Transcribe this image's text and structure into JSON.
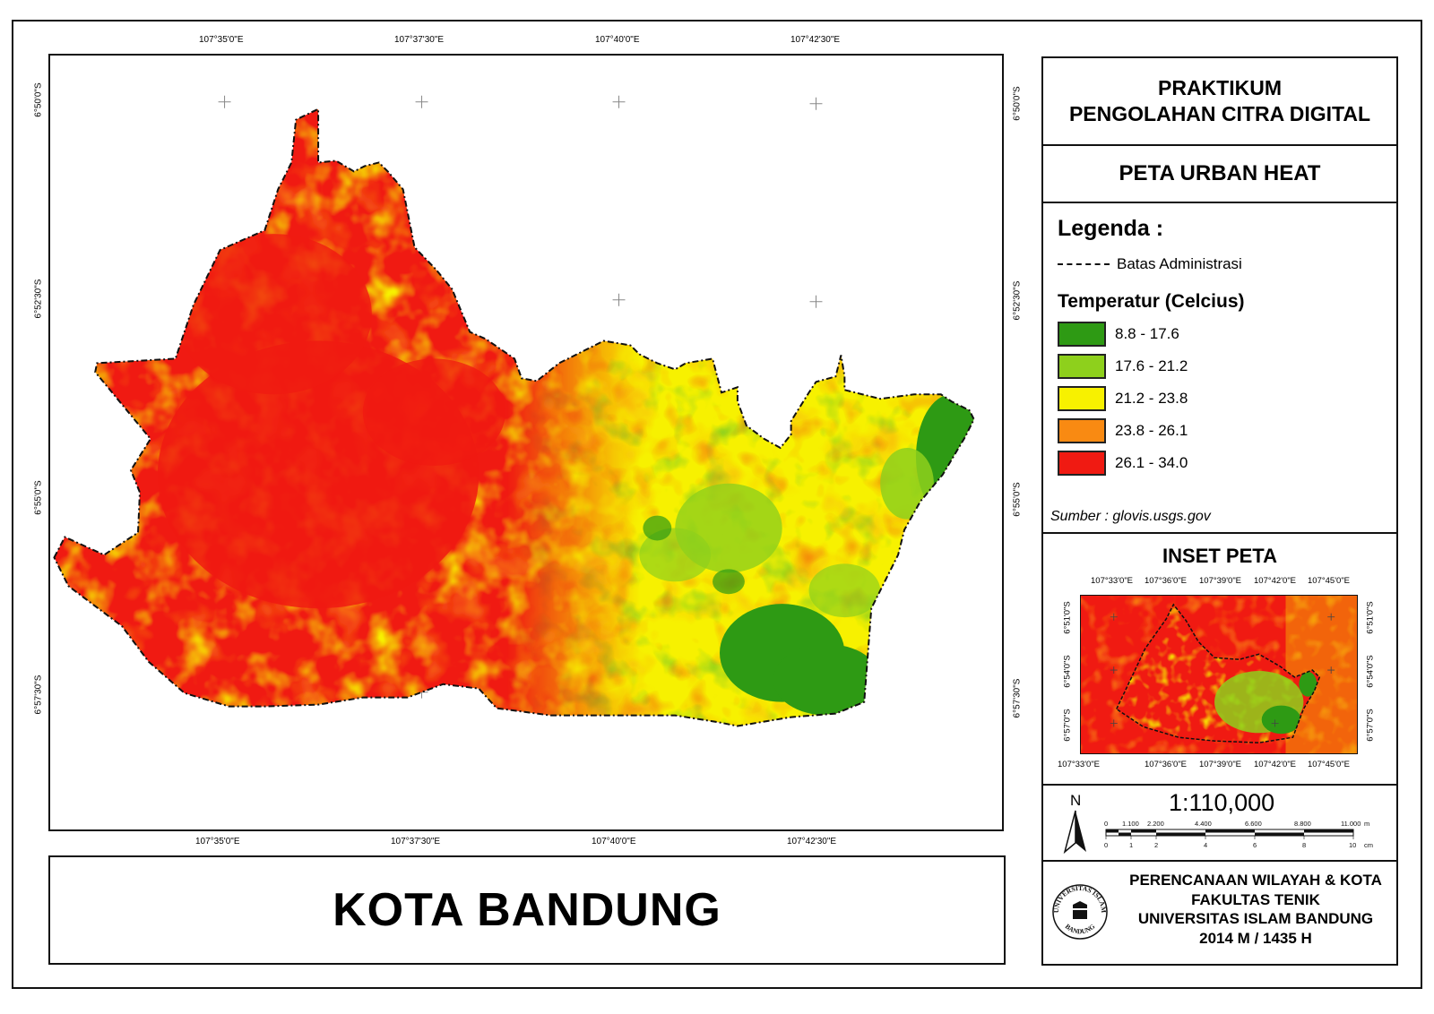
{
  "map": {
    "top_lon_labels": [
      "107°35'0\"E",
      "107°37'30\"E",
      "107°40'0\"E",
      "107°42'30\"E"
    ],
    "bottom_lon_labels": [
      "107°35'0\"E",
      "107°37'30\"E",
      "107°40'0\"E",
      "107°42'30\"E"
    ],
    "left_lat_labels": [
      "6°50'0\"S",
      "6°52'30\"S",
      "6°55'0\"S",
      "6°57'30\"S"
    ],
    "right_lat_labels": [
      "6°50'0\"S",
      "6°52'30\"S",
      "6°55'0\"S",
      "6°57'30\"S"
    ]
  },
  "title": "KOTA BANDUNG",
  "header": {
    "line1": "PRAKTIKUM",
    "line2": "PENGOLAHAN CITRA DIGITAL"
  },
  "map_title": "PETA URBAN HEAT",
  "legend": {
    "heading": "Legenda :",
    "admin_label": "Batas Administrasi",
    "temp_heading": "Temperatur (Celcius)",
    "classes": [
      {
        "range": "8.8 - 17.6",
        "color": "#2e9a14"
      },
      {
        "range": "17.6 - 21.2",
        "color": "#8ed01c"
      },
      {
        "range": "21.2 - 23.8",
        "color": "#f7f100"
      },
      {
        "range": "23.8 - 26.1",
        "color": "#f98a12"
      },
      {
        "range": "26.1 - 34.0",
        "color": "#f01a12"
      }
    ],
    "source": "Sumber : glovis.usgs.gov"
  },
  "inset": {
    "title": "INSET PETA",
    "top_labels": [
      "107°33'0\"E",
      "107°36'0\"E",
      "107°39'0\"E",
      "107°42'0\"E",
      "107°45'0\"E"
    ],
    "bottom_labels": [
      "107°33'0\"E",
      "107°36'0\"E",
      "107°39'0\"E",
      "107°42'0\"E",
      "107°45'0\"E"
    ],
    "left_labels": [
      "6°51'0\"S",
      "6°54'0\"S",
      "6°57'0\"S"
    ],
    "right_labels": [
      "6°51'0\"S",
      "6°54'0\"S",
      "6°57'0\"S"
    ]
  },
  "scale": {
    "north": "N",
    "ratio": "1:110,000",
    "m_ticks": [
      "0",
      "1.100",
      "2.200",
      "4.400",
      "6.600",
      "8.800",
      "11.000"
    ],
    "m_unit": "m",
    "cm_ticks": [
      "0",
      "1",
      "2",
      "4",
      "6",
      "8",
      "10"
    ],
    "cm_unit": "cm"
  },
  "institution": {
    "lines": [
      "PERENCANAAN WILAYAH & KOTA",
      "FAKULTAS TENIK",
      "UNIVERSITAS ISLAM BANDUNG",
      "2014 M / 1435 H"
    ],
    "logo_text_top": "UNIVERSITAS ISLAM",
    "logo_text_bottom": "BANDUNG"
  },
  "colors": {
    "class1": "#2e9a14",
    "class2": "#8ed01c",
    "class3": "#f7f100",
    "class4": "#f98a12",
    "class5": "#f01a12"
  }
}
